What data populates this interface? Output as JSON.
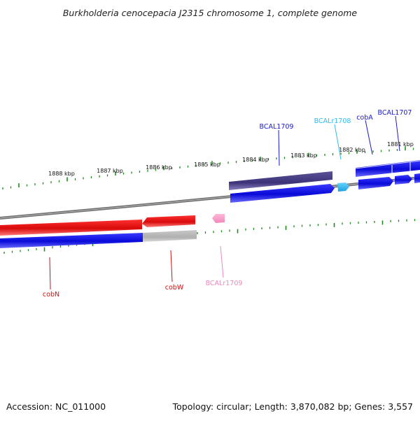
{
  "title": "Burkholderia cenocepacia J2315 chromosome 1, complete genome",
  "footer": {
    "accession": "Accession: NC_011000",
    "topology": "Topology: circular; Length: 3,870,082 bp; Genes: 3,557"
  },
  "ticks": [
    "1888 kbp",
    "1887 kbp",
    "1886 kbp",
    "1885 kbp",
    "1884 kbp",
    "1883 kbp",
    "1882 kbp",
    "1881 kbp"
  ],
  "genes_top": [
    {
      "label": "BCAL1709",
      "color": "#1a1ac8"
    },
    {
      "label": "BCALr1708",
      "color": "#33bbee"
    },
    {
      "label": "cobA",
      "color": "#1a1ac8"
    },
    {
      "label": "BCAL1707",
      "color": "#1a1ac8"
    }
  ],
  "genes_bottom": [
    {
      "label": "cobN",
      "color": "#cc1111"
    },
    {
      "label": "cobW",
      "color": "#cc1111"
    },
    {
      "label": "BCALr1709",
      "color": "#ee88bb"
    }
  ],
  "colors": {
    "backbone": "#7a7a7a",
    "tick": "#1e8c1e",
    "forward_cds": "#1010e0",
    "reverse_cds": "#e01010",
    "pseudo": "#4a4088",
    "rna_forward": "#33bbee",
    "rna_reverse": "#f5a0c8",
    "gray_track": "#bdbdbd"
  }
}
